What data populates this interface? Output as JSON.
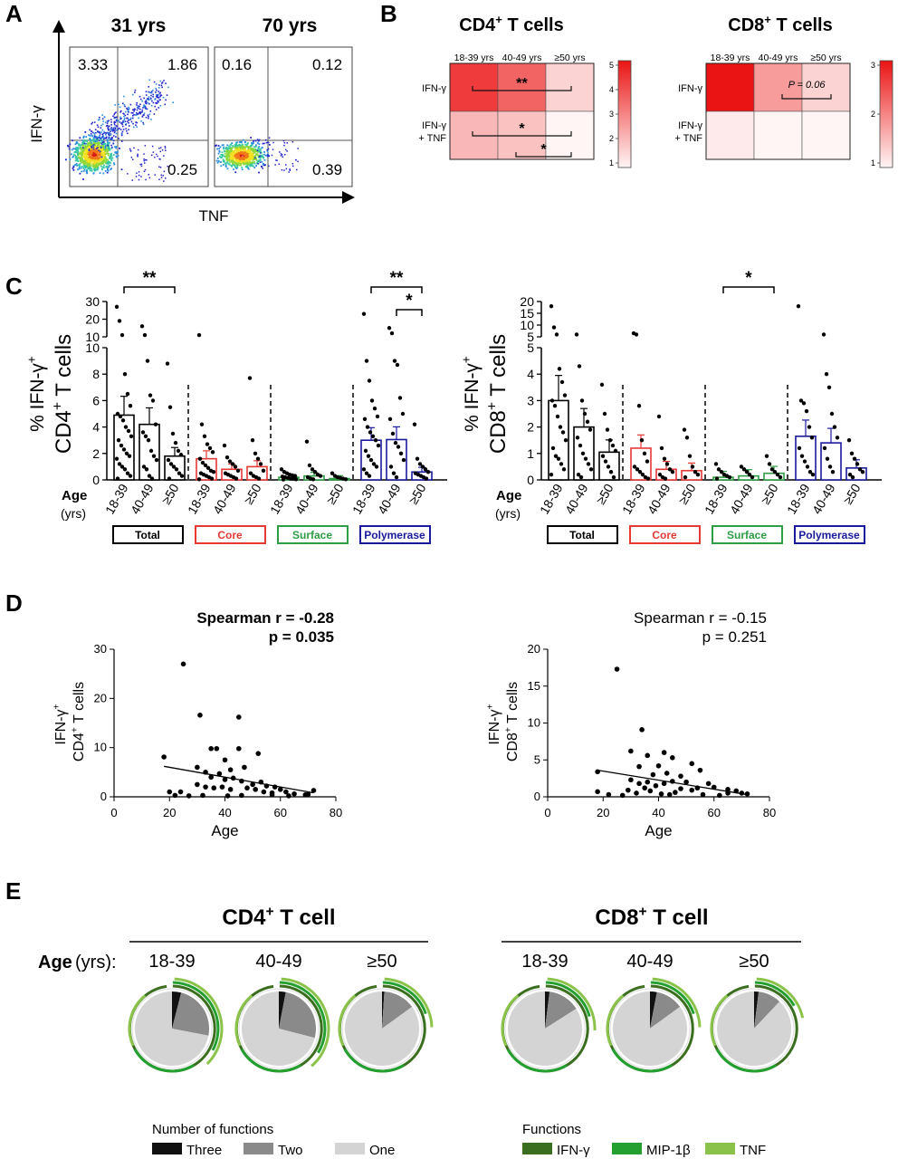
{
  "panels": {
    "A": "A",
    "B": "B",
    "C": "C",
    "D": "D",
    "E": "E"
  },
  "flow": {
    "plots": [
      {
        "title": "31 yrs",
        "q_ul": "3.33",
        "q_ur": "1.86",
        "q_lr": "0.25"
      },
      {
        "title": "70 yrs",
        "q_ul": "0.16",
        "q_ur": "0.12",
        "q_lr": "0.39"
      }
    ],
    "ylabel": "IFN-γ",
    "xlabel": "TNF"
  },
  "heatmaps": [
    {
      "title": "CD4",
      "title_sup": "+",
      "title_rest": " T cells",
      "cols": [
        "18-39 yrs",
        "40-49 yrs",
        "≥50 yrs"
      ],
      "rows": [
        "IFN-γ",
        "IFN-γ",
        "+ TNF"
      ],
      "values": [
        [
          4.3,
          3.6,
          1.6
        ],
        [
          2.1,
          1.9,
          1.0
        ]
      ],
      "vmax": 5,
      "scale_ticks": [
        "5",
        "4",
        "3",
        "2",
        "1"
      ],
      "brackets": [
        {
          "label": "**"
        },
        {
          "label": "*"
        },
        {
          "label": "*"
        }
      ]
    },
    {
      "title": "CD8",
      "title_sup": "+",
      "title_rest": " T cells",
      "cols": [
        "18-39 yrs",
        "40-49 yrs",
        "≥50 yrs"
      ],
      "rows": [
        "IFN-γ",
        "IFN-γ",
        "+ TNF"
      ],
      "values": [
        [
          3.0,
          1.8,
          1.3
        ],
        [
          1.1,
          1.0,
          1.0
        ]
      ],
      "vmax": 3,
      "scale_ticks": [
        "3",
        "2",
        "1"
      ],
      "brackets": [
        {
          "label": "P = 0.06"
        }
      ]
    }
  ],
  "barcharts": {
    "age_label": "Age",
    "yrs_label": "(yrs)",
    "age_groups": [
      "18-39",
      "40-49",
      "≥50"
    ],
    "categories": [
      "Total",
      "Core",
      "Surface",
      "Polymerase"
    ],
    "category_colors": [
      "#000000",
      "#e53935",
      "#2e9e44",
      "#1a1a9c"
    ],
    "cd4": {
      "ylabel_top": "% IFN-γ",
      "ylabel_sup": "+",
      "ylabel_bottom": "CD4",
      "ylabel_bottom_sup": "+",
      "ylabel_bottom_rest": " T cells",
      "yticks_low": [
        "0",
        "2",
        "4",
        "6",
        "8",
        "10"
      ],
      "yticks_high": [
        "10",
        "20",
        "30"
      ],
      "means": [
        [
          4.9,
          4.2,
          1.8
        ],
        [
          1.6,
          0.8,
          1.0
        ],
        [
          0.2,
          0.3,
          0.1
        ],
        [
          3.0,
          3.05,
          0.6
        ]
      ],
      "sig": [
        {
          "label": "**"
        },
        {
          "label": "**"
        },
        {
          "label": "*"
        }
      ]
    },
    "cd8": {
      "ylabel_top": "% IFN-γ",
      "ylabel_sup": "+",
      "ylabel_bottom": "CD8",
      "ylabel_bottom_sup": "+",
      "ylabel_bottom_rest": " T cells",
      "yticks_low": [
        "0",
        "1",
        "2",
        "3",
        "4",
        "5"
      ],
      "yticks_high": [
        "5",
        "10",
        "15",
        "20"
      ],
      "means": [
        [
          3.0,
          2.0,
          1.05
        ],
        [
          1.2,
          0.4,
          0.35
        ],
        [
          0.1,
          0.15,
          0.25
        ],
        [
          1.65,
          1.4,
          0.45
        ]
      ],
      "sig": [
        {
          "label": "*"
        }
      ]
    }
  },
  "scatters": [
    {
      "ylabel1": "IFN-γ",
      "ylabel1_sup": "+",
      "ylabel2": "CD4",
      "ylabel2_sup": "+",
      "ylabel2_rest": " T cells",
      "stat1": "Spearman r = -0.28",
      "stat2": "p = 0.035",
      "bold": true,
      "xlabel": "Age",
      "xticks": [
        "0",
        "20",
        "40",
        "60",
        "80"
      ],
      "yticks": [
        "0",
        "10",
        "20",
        "30"
      ],
      "ymax": 30,
      "fit": [
        18,
        6.2,
        72,
        0.8
      ]
    },
    {
      "ylabel1": "IFN-γ",
      "ylabel1_sup": "+",
      "ylabel2": "CD8",
      "ylabel2_sup": "+",
      "ylabel2_rest": " T cells",
      "stat1": "Spearman r = -0.15",
      "stat2": "p = 0.251",
      "bold": false,
      "xlabel": "Age",
      "xticks": [
        "0",
        "20",
        "40",
        "60",
        "80"
      ],
      "yticks": [
        "0",
        "5",
        "10",
        "15",
        "20"
      ],
      "ymax": 20,
      "fit": [
        18,
        3.6,
        72,
        0.3
      ]
    }
  ],
  "pies": {
    "groups": [
      {
        "title": "CD4",
        "title_sup": "+",
        "title_rest": " T cell"
      },
      {
        "title": "CD8",
        "title_sup": "+",
        "title_rest": " T cell"
      }
    ],
    "age_label": "Age",
    "age_units": " (yrs):",
    "age_groups": [
      "18-39",
      "40-49",
      "≥50"
    ],
    "fractions": [
      [
        [
          0.04,
          0.24,
          0.72
        ],
        [
          0.03,
          0.26,
          0.71
        ],
        [
          0.01,
          0.14,
          0.85
        ]
      ],
      [
        [
          0.02,
          0.14,
          0.84
        ],
        [
          0.03,
          0.12,
          0.85
        ],
        [
          0.02,
          0.1,
          0.88
        ]
      ]
    ]
  },
  "legend": {
    "nf_title": "Number of functions",
    "nf_items": [
      {
        "label": "Three",
        "color": "#111111"
      },
      {
        "label": "Two",
        "color": "#8a8a8a"
      },
      {
        "label": "One",
        "color": "#d4d4d4"
      }
    ],
    "fn_title": "Functions",
    "fn_items": [
      {
        "label": "IFN-γ",
        "color": "#3b6e1e"
      },
      {
        "label": "MIP-1β",
        "color": "#24a030"
      },
      {
        "label": "TNF",
        "color": "#8bc34a"
      }
    ]
  }
}
